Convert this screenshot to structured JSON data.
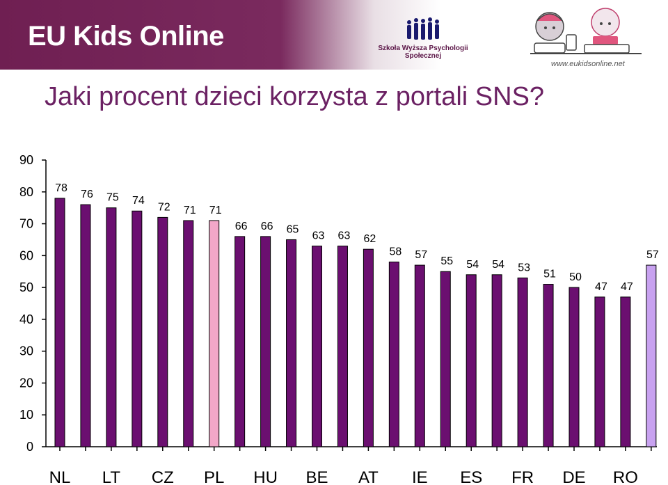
{
  "header": {
    "brand": "EU Kids Online",
    "school": "Szkoła Wyższa Psychologii Społecznej",
    "site": "www.eukidsonline.net"
  },
  "colors": {
    "banner": "#6f1f52",
    "title": "#6b2163",
    "bar_default": "#6b0f70",
    "bar_pl": "#f2a7c8",
    "bar_average": "#c8a2f0"
  },
  "chart_data": {
    "type": "bar",
    "title": "Jaki procent dzieci korzysta z portali SNS?",
    "ylim": [
      0,
      90
    ],
    "yticks": [
      0,
      10,
      20,
      30,
      40,
      50,
      60,
      70,
      80,
      90
    ],
    "grid": false,
    "categories_labels": [
      "NL",
      "LT",
      "CZ",
      "PL",
      "HU",
      "BE",
      "AT",
      "IE",
      "ES",
      "FR",
      "DE",
      "RO"
    ],
    "values": [
      78,
      76,
      75,
      74,
      72,
      71,
      71,
      66,
      66,
      65,
      63,
      63,
      62,
      58,
      57,
      55,
      54,
      54,
      53,
      51,
      50,
      47,
      47,
      57
    ],
    "highlight": {
      "pl_index": 6,
      "average_index": 23
    }
  }
}
